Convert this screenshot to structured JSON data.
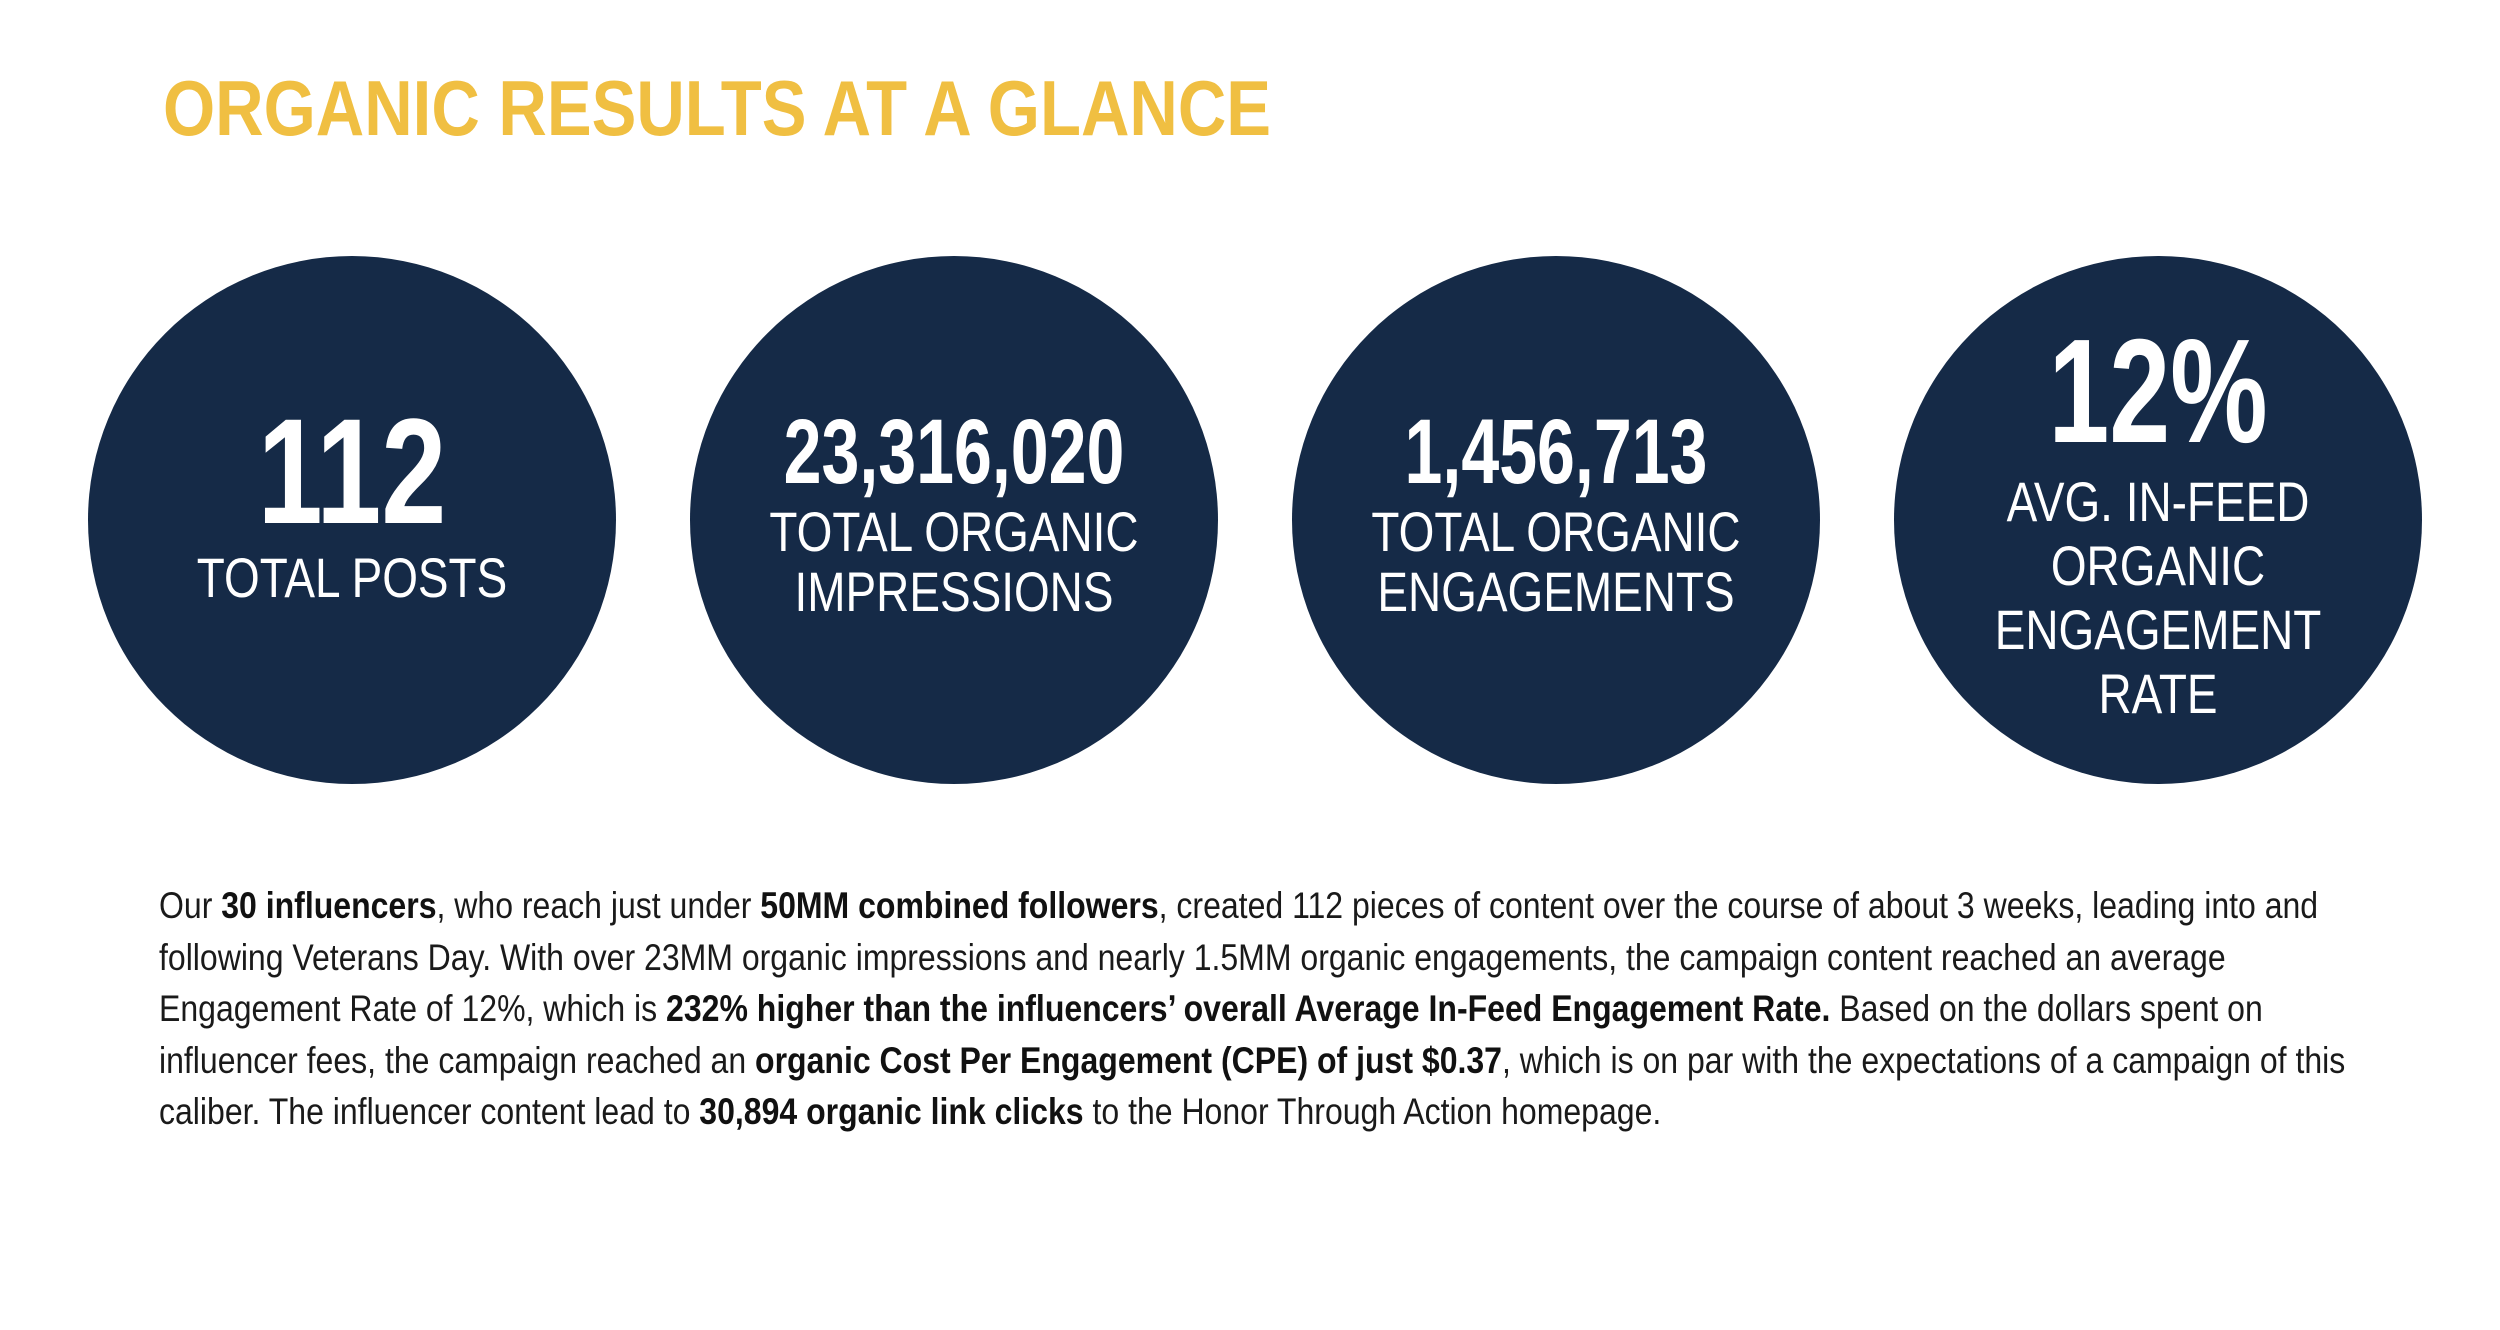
{
  "title": "ORGANIC RESULTS AT A GLANCE",
  "colors": {
    "title": "#f0bf42",
    "circle": "#152a47",
    "circle_text": "#ffffff",
    "body_text": "#1a1a1a"
  },
  "stats": [
    {
      "value": "112",
      "label_lines": [
        "TOTAL POSTS"
      ]
    },
    {
      "value": "23,316,020",
      "label_lines": [
        "TOTAL ORGANIC",
        "IMPRESSIONS"
      ]
    },
    {
      "value": "1,456,713",
      "label_lines": [
        "TOTAL ORGANIC",
        "ENGAGEMENTS"
      ]
    },
    {
      "value": "12%",
      "label_lines": [
        "AVG. IN-FEED",
        "ORGANIC",
        "ENGAGEMENT",
        "RATE"
      ]
    }
  ],
  "summary": {
    "segments": [
      {
        "text": "Our ",
        "bold": false
      },
      {
        "text": "30 influencers",
        "bold": true
      },
      {
        "text": ", who reach just under ",
        "bold": false
      },
      {
        "text": "50MM combined followers",
        "bold": true
      },
      {
        "text": ", created 112 pieces of content over the course of about 3 weeks, leading into and following Veterans Day. With over 23MM organic impressions and nearly 1.5MM organic engagements, the campaign content reached an average Engagement Rate of 12%, which is ",
        "bold": false
      },
      {
        "text": "232% higher than the influencers’ overall Average In-Feed Engagement Rate.",
        "bold": true
      },
      {
        "text": " Based on the dollars spent on influencer fees, the campaign reached an ",
        "bold": false
      },
      {
        "text": "organic Cost Per Engagement (CPE) of just $0.37",
        "bold": true
      },
      {
        "text": ", which is on par with the expectations of a campaign of this caliber. The influencer content lead to ",
        "bold": false
      },
      {
        "text": "30,894 organic link clicks",
        "bold": true
      },
      {
        "text": " to the Honor Through Action homepage.",
        "bold": false
      }
    ]
  }
}
